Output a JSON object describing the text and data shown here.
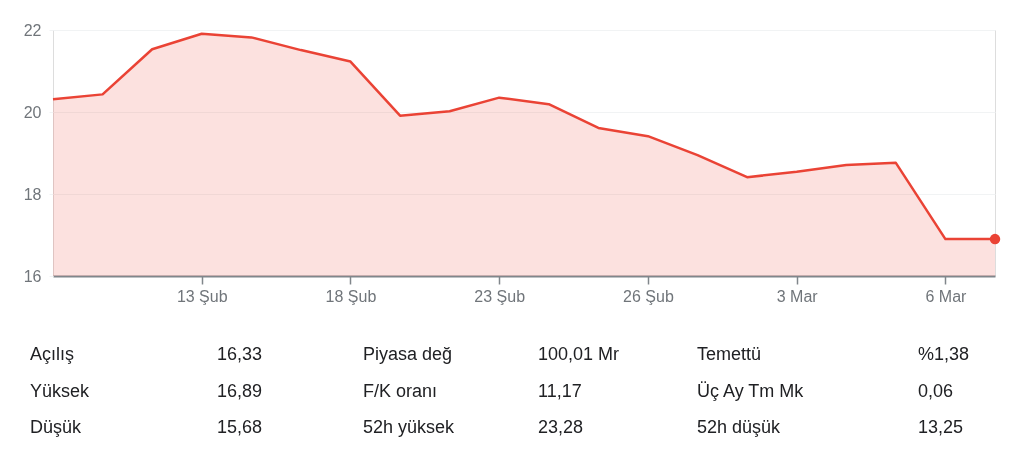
{
  "chart_data": {
    "type": "area",
    "categories": [
      null,
      null,
      null,
      "13 Şub",
      null,
      null,
      "18 Şub",
      null,
      null,
      "23 Şub",
      null,
      null,
      "26 Şub",
      null,
      null,
      "3 Mar",
      null,
      null,
      "6 Mar",
      null
    ],
    "series": [
      {
        "color": "#ea4335",
        "values": [
          20.31,
          20.43,
          21.53,
          21.91,
          21.82,
          21.51,
          21.23,
          19.91,
          20.02,
          20.35,
          20.19,
          19.61,
          19.41,
          18.95,
          18.41,
          18.54,
          18.71,
          18.76,
          16.9,
          16.9
        ]
      }
    ],
    "ylim": [
      16,
      22
    ],
    "yticks": [
      16,
      18,
      20,
      22
    ],
    "grid": "y",
    "annotations": [
      "Açılış",
      "16,33",
      "Piyasa değ",
      "100,01 Mr",
      "Temettü",
      "%1,38",
      "Yüksek",
      "16,89",
      "F/K oranı",
      "11,17",
      "Üç Ay Tm Mk",
      "0,06",
      "Düşük",
      "15,68",
      "52h yüksek",
      "23,28",
      "52h düşük",
      "13,25"
    ]
  }
}
